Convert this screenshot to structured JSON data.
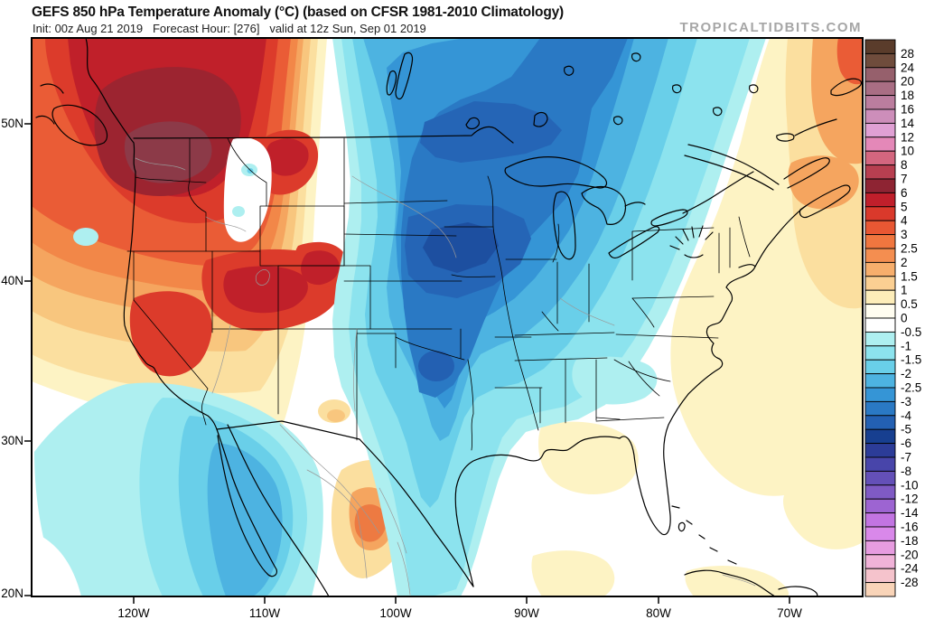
{
  "header": {
    "title": "GEFS 850 hPa Temperature Anomaly (°C) (based on CFSR 1981-2010 Climatology)",
    "subtitle": "Init: 00z Aug 21 2019   Forecast Hour: [276]   valid at 12z Sun, Sep 01 2019",
    "watermark": "TROPICALTIDBITS.COM"
  },
  "chart_data": {
    "type": "heatmap",
    "title": "GEFS 850 hPa Temperature Anomaly (°C)",
    "climatology": "CFSR 1981-2010",
    "init_time": "00z Aug 21 2019",
    "forecast_hour": "[276]",
    "valid_time": "12z Sun, Sep 01 2019",
    "units": "°C",
    "x_axis": {
      "labels": [
        "120W",
        "110W",
        "100W",
        "90W",
        "80W",
        "70W"
      ]
    },
    "y_axis": {
      "labels": [
        "50N",
        "40N",
        "30N",
        "20N"
      ]
    },
    "colorbar": {
      "tick_labels": [
        "28",
        "24",
        "20",
        "18",
        "16",
        "14",
        "12",
        "10",
        "8",
        "7",
        "6",
        "5",
        "4",
        "3",
        "2.5",
        "2",
        "1.5",
        "1",
        "0.5",
        "0",
        "-0.5",
        "-1",
        "-1.5",
        "-2",
        "-2.5",
        "-3",
        "-4",
        "-5",
        "-6",
        "-7",
        "-8",
        "-10",
        "-12",
        "-14",
        "-16",
        "-18",
        "-20",
        "-24",
        "-28"
      ],
      "cell_colors": [
        "#5a3c2b",
        "#6f4c3c",
        "#96606c",
        "#a96e84",
        "#bb7d9e",
        "#cd8eba",
        "#e0a0d4",
        "#e488b8",
        "#d4667f",
        "#b83f50",
        "#8e2433",
        "#c01f2b",
        "#da392b",
        "#e85733",
        "#f0763f",
        "#f48e50",
        "#f7ae6c",
        "#fbcf92",
        "#fdedb9",
        "#fffdf0",
        "#ffffff",
        "#aeeff0",
        "#8ce3ee",
        "#69cfe9",
        "#4db3e1",
        "#3595d6",
        "#2a79c4",
        "#2360b2",
        "#173f90",
        "#2c3c98",
        "#4845aa",
        "#6450b8",
        "#7f5ac4",
        "#9d64d2",
        "#c274e2",
        "#d988ea",
        "#e79ce0",
        "#f0b2d8",
        "#f5c3cc",
        "#f9d4b8"
      ]
    },
    "features": [
      {
        "region": "Pacific Northwest / Northern Rockies (WA-OR-ID-MT)",
        "anomaly_c": "+5 to +10"
      },
      {
        "region": "Great Basin / Nevada / Utah",
        "anomaly_c": "+4 to +6"
      },
      {
        "region": "Upper Midwest core (NE-IA-MN-WI)",
        "anomaly_c": "-4 to -6"
      },
      {
        "region": "Central and Southern Plains (KS-OK-N TX)",
        "anomaly_c": "-2 to -4"
      },
      {
        "region": "Great Lakes / Ohio Valley",
        "anomaly_c": "-2 to -4"
      },
      {
        "region": "Northeast US coastal plain / New England",
        "anomaly_c": "-1 to 0"
      },
      {
        "region": "Western Atlantic / Nova Scotia / Newfoundland",
        "anomaly_c": "+1 to +4"
      },
      {
        "region": "Eastern Pacific off California and Baja",
        "anomaly_c": "-1 to -3"
      },
      {
        "region": "Northeastern Mexico interior",
        "anomaly_c": "+2 to +3"
      },
      {
        "region": "Gulf of Mexico",
        "anomaly_c": "0 to +1"
      }
    ]
  }
}
